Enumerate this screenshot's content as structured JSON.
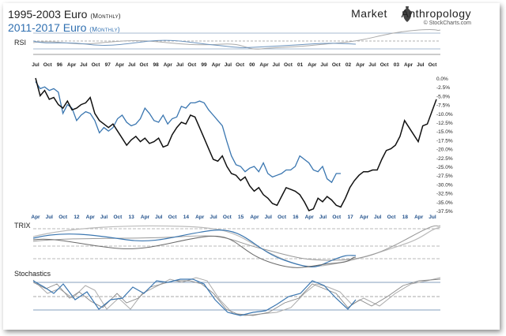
{
  "header": {
    "title1_main": "1995-2003 Euro",
    "title1_sub": "(Monthly)",
    "title2_main": "2011-2017  Euro",
    "title2_sub": "(Monthly)",
    "brand_left": "Market",
    "brand_right": "Anthropology",
    "brand_site": "© StockCharts.com",
    "brand_icon": "amphora-icon"
  },
  "colors": {
    "series_1995_2003": "#111111",
    "series_2011_2017": "#3a76b0",
    "indicator_gray": "#b0b0b0"
  },
  "chart_data": {
    "type": "line",
    "y_axis_side": "right",
    "ylim": [
      -37.5,
      0
    ],
    "y_ticks": [
      "0.0%",
      "-2.5%",
      "-5.0%",
      "-7.5%",
      "-10.0%",
      "-12.5%",
      "-15.0%",
      "-17.5%",
      "-20.0%",
      "-22.5%",
      "-25.0%",
      "-27.5%",
      "-30.0%",
      "-32.5%",
      "-35.0%",
      "-37.5%"
    ],
    "top_axis_labels": [
      "Jul",
      "Oct",
      "96",
      "Apr",
      "Jul",
      "Oct",
      "97",
      "Apr",
      "Jul",
      "Oct",
      "98",
      "Apr",
      "Jul",
      "Oct",
      "99",
      "Apr",
      "Jul",
      "Oct",
      "00",
      "Apr",
      "Jul",
      "Oct",
      "01",
      "Apr",
      "Jul",
      "Oct",
      "02",
      "Apr",
      "Jul",
      "Oct",
      "03",
      "Apr",
      "Jul",
      "Oct"
    ],
    "bottom_axis_labels": [
      "Apr",
      "Jul",
      "Oct",
      "12",
      "Apr",
      "Jul",
      "Oct",
      "13",
      "Apr",
      "Jul",
      "Oct",
      "14",
      "Apr",
      "Jul",
      "Oct",
      "15",
      "Apr",
      "Jul",
      "Oct",
      "16",
      "Apr",
      "Jul",
      "Oct",
      "17",
      "Apr",
      "Jul",
      "Oct",
      "18",
      "Apr",
      "Jul"
    ],
    "series": [
      {
        "name": "1995-2003 Euro",
        "values": [
          0,
          -5,
          -3.5,
          -6,
          -5.5,
          -7.5,
          -8.5,
          -6.5,
          -9,
          -8.5,
          -7.5,
          -7,
          -5.5,
          -10,
          -12,
          -13,
          -14,
          -13,
          -15,
          -17,
          -19,
          -17.5,
          -16.5,
          -18,
          -17,
          -18.5,
          -18,
          -17,
          -19.5,
          -19,
          -16,
          -14,
          -12.5,
          -13,
          -10.5,
          -11,
          -14,
          -17,
          -20,
          -23,
          -23.5,
          -22,
          -25,
          -27,
          -27.5,
          -29,
          -28,
          -30.5,
          -32,
          -31,
          -33,
          -34,
          -35.5,
          -36,
          -33.5,
          -31,
          -31.5,
          -32,
          -33,
          -35,
          -37.5,
          -37,
          -34,
          -35,
          -33.5,
          -34.5,
          -36,
          -36.5,
          -34,
          -31,
          -29,
          -27.5,
          -26.5,
          -26.5,
          -26,
          -26,
          -23,
          -20.5,
          -20,
          -19,
          -16.5,
          -12,
          -14,
          -16,
          -18,
          -13.5,
          -13,
          -9.5,
          -6
        ]
      },
      {
        "name": "2011-2017 Euro",
        "values": [
          -1,
          -3,
          -2.5,
          -3.5,
          -3,
          -4,
          -10,
          -7.5,
          -8.5,
          -12,
          -10.5,
          -9.5,
          -10,
          -12,
          -15.5,
          -14,
          -15,
          -14,
          -11.5,
          -10.5,
          -12.5,
          -13.5,
          -13,
          -11.5,
          -8.5,
          -10,
          -12,
          -12.5,
          -10.5,
          -13,
          -11.5,
          -11,
          -8,
          -8.5,
          -7,
          -7,
          -6.5,
          -7,
          -9,
          -10.5,
          -12,
          -13.5,
          -18,
          -22,
          -24.5,
          -25,
          -26.5,
          -25.5,
          -25,
          -26.5,
          -24,
          -27,
          -28,
          -27.5,
          -27,
          -26,
          -26,
          -25,
          -22,
          -23,
          -24,
          -26,
          -26.5,
          -25,
          -28.5,
          -29.5,
          -27,
          -27
        ]
      }
    ],
    "panels": [
      "RSI",
      "TRIX",
      "Stochastics"
    ]
  }
}
